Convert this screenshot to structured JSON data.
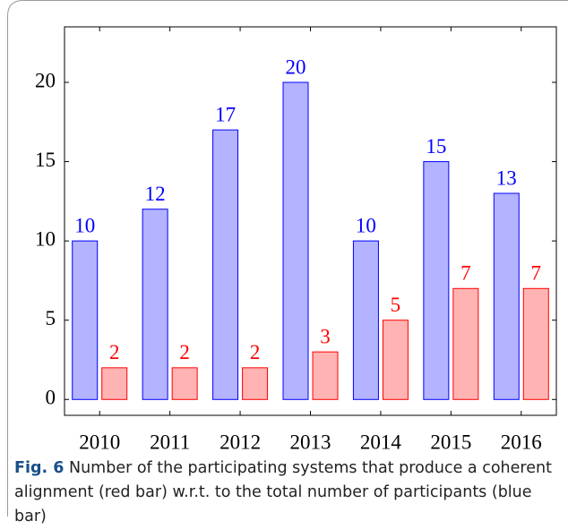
{
  "chart_data": {
    "type": "bar",
    "categories": [
      "2010",
      "2011",
      "2012",
      "2013",
      "2014",
      "2015",
      "2016"
    ],
    "series": [
      {
        "color": "#b3b3ff",
        "edgecolor": "#0000ff",
        "values": [
          10,
          12,
          17,
          20,
          10,
          15,
          13
        ]
      },
      {
        "color": "#ffb3b3",
        "edgecolor": "#ff0000",
        "values": [
          2,
          2,
          2,
          3,
          5,
          7,
          7
        ]
      }
    ],
    "ylim": [
      -1,
      23.5
    ],
    "yticks": [
      0,
      5,
      10,
      15,
      20
    ],
    "grid": false
  },
  "caption": {
    "label": "Fig. 6",
    "text": "Number of the participating systems that produce a coherent alignment (red bar) w.r.t. to the total number of participants (blue bar)"
  }
}
